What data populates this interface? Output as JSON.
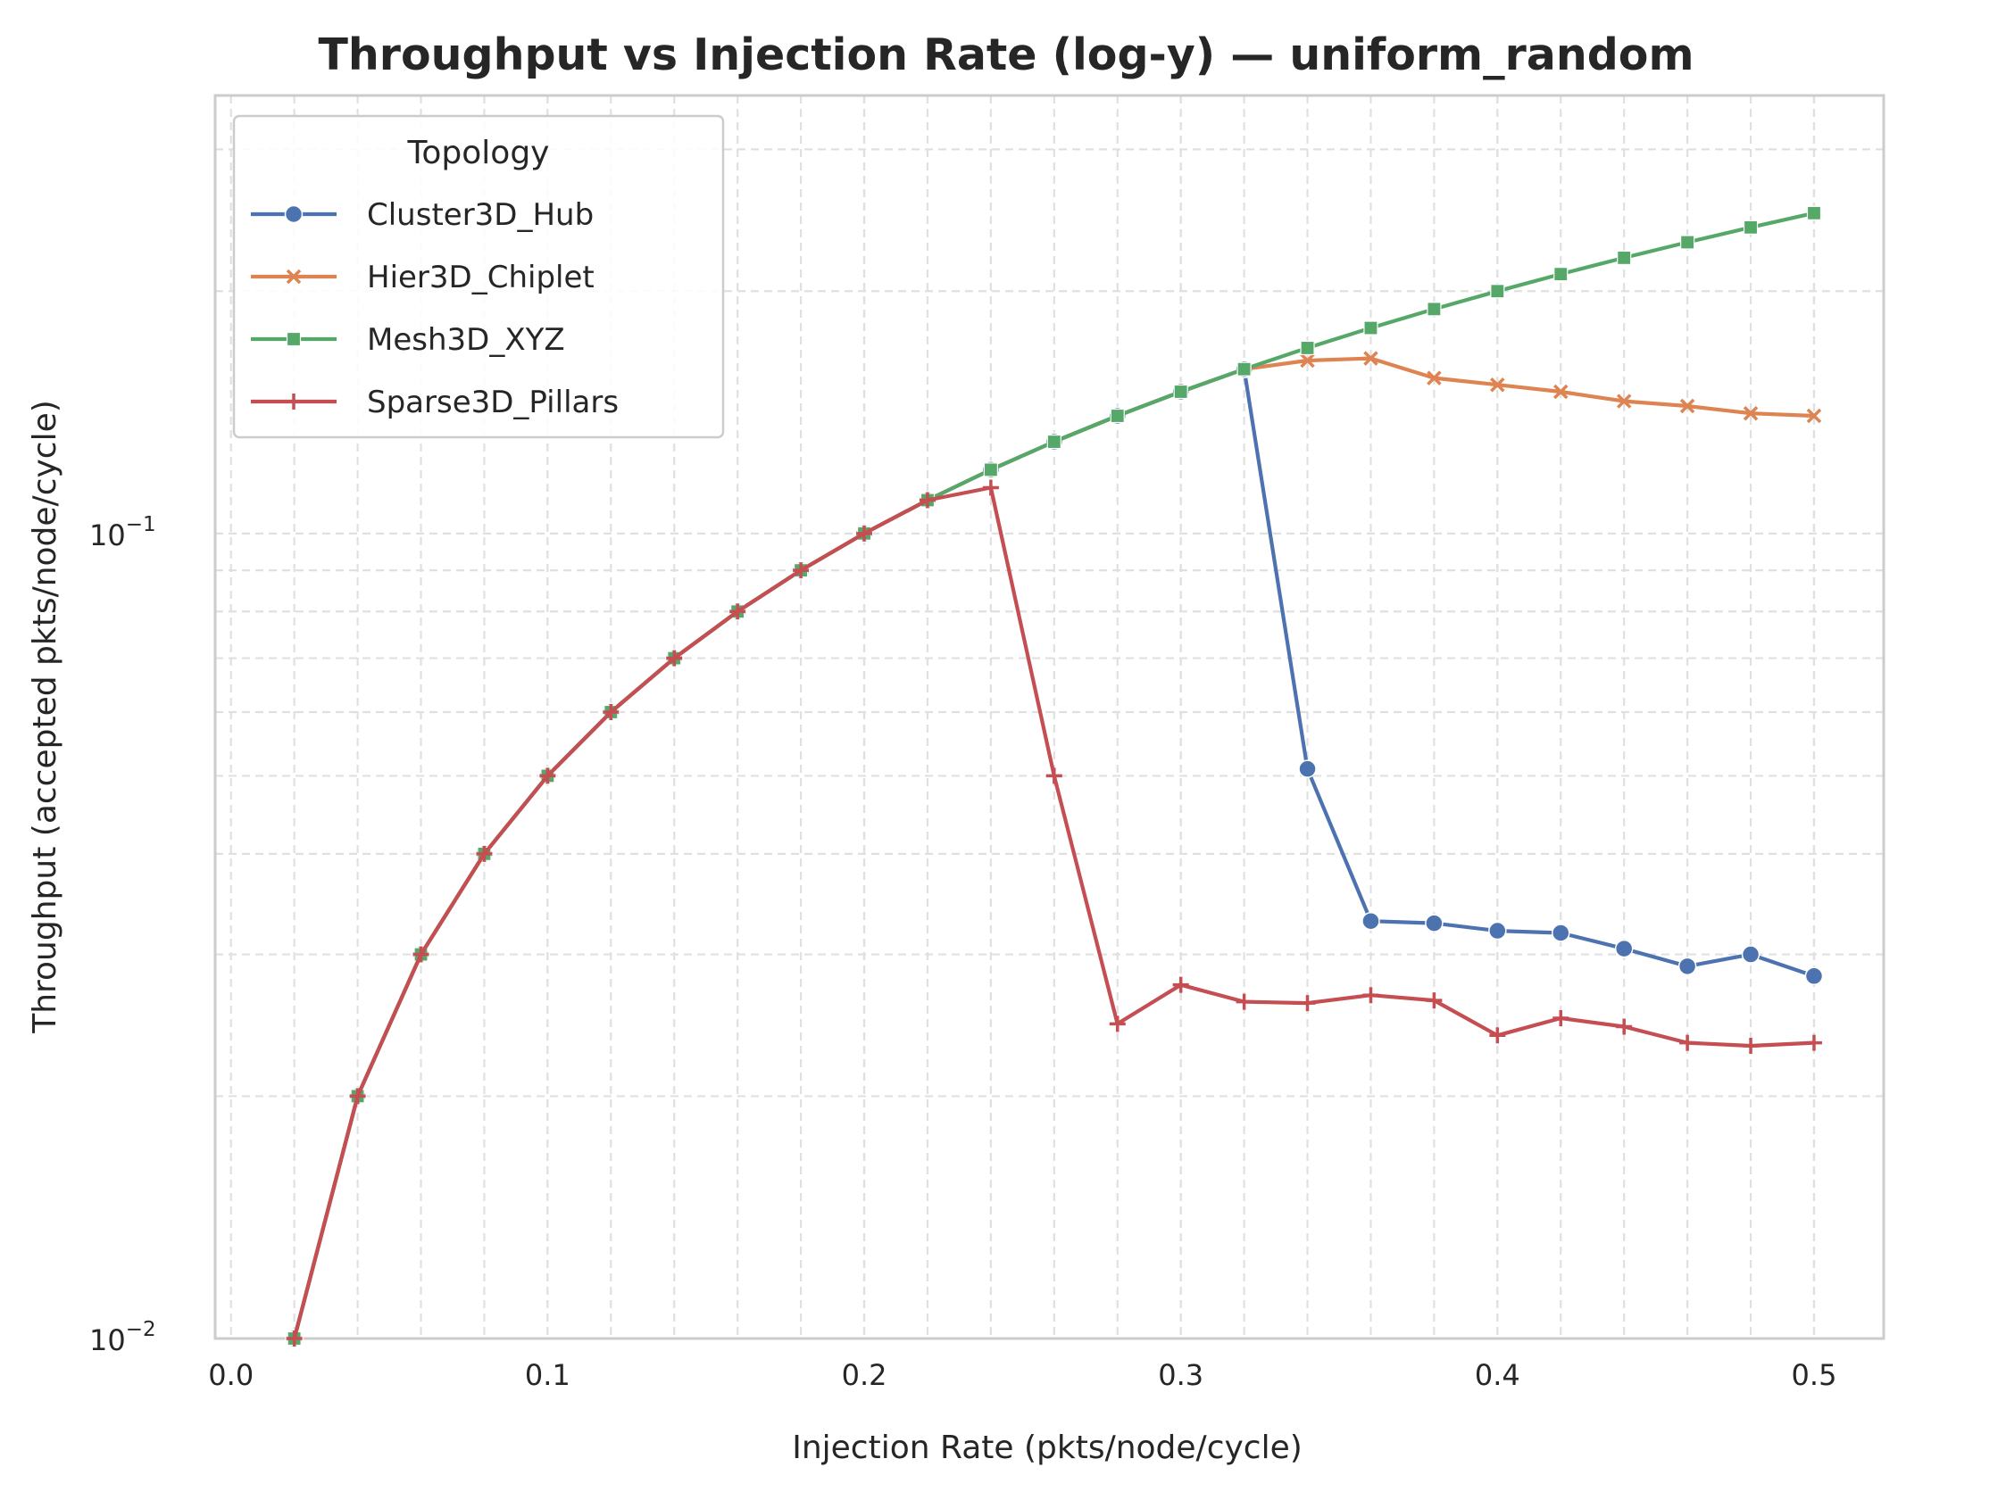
{
  "chart_data": {
    "type": "line",
    "title": "Throughput vs Injection Rate (log-y) — uniform_random",
    "xlabel": "Injection Rate (pkts/node/cycle)",
    "ylabel": "Throughput (accepted pkts/node/cycle)",
    "xlim": [
      -0.005,
      0.522
    ],
    "ylim": [
      0.01,
      0.35
    ],
    "yscale": "log",
    "grid": true,
    "xticks": [
      {
        "value": 0.0,
        "label": "0.0"
      },
      {
        "value": 0.1,
        "label": "0.1"
      },
      {
        "value": 0.2,
        "label": "0.2"
      },
      {
        "value": 0.3,
        "label": "0.3"
      },
      {
        "value": 0.4,
        "label": "0.4"
      },
      {
        "value": 0.5,
        "label": "0.5"
      }
    ],
    "yticks": [
      {
        "value": 0.01,
        "base": "10",
        "exp": "−2"
      },
      {
        "value": 0.1,
        "base": "10",
        "exp": "−1"
      }
    ],
    "legend": {
      "title": "Topology",
      "position": "top-left"
    },
    "series": [
      {
        "name": "Cluster3D_Hub",
        "color": "#4c72b0",
        "marker": "circle",
        "x": [
          0.02,
          0.04,
          0.06,
          0.08,
          0.1,
          0.12,
          0.14,
          0.16,
          0.18,
          0.2,
          0.22,
          0.24,
          0.26,
          0.28,
          0.3,
          0.32,
          0.34,
          0.36,
          0.38,
          0.4,
          0.42,
          0.44,
          0.46,
          0.48,
          0.5
        ],
        "y": [
          0.01,
          0.02,
          0.03,
          0.04,
          0.05,
          0.06,
          0.07,
          0.08,
          0.09,
          0.1,
          0.11,
          0.12,
          0.13,
          0.14,
          0.15,
          0.16,
          0.051,
          0.033,
          0.0328,
          0.0321,
          0.0319,
          0.0305,
          0.029,
          0.03,
          0.0282
        ]
      },
      {
        "name": "Hier3D_Chiplet",
        "color": "#dd8452",
        "marker": "x",
        "x": [
          0.02,
          0.04,
          0.06,
          0.08,
          0.1,
          0.12,
          0.14,
          0.16,
          0.18,
          0.2,
          0.22,
          0.24,
          0.26,
          0.28,
          0.3,
          0.32,
          0.34,
          0.36,
          0.38,
          0.4,
          0.42,
          0.44,
          0.46,
          0.48,
          0.5
        ],
        "y": [
          0.01,
          0.02,
          0.03,
          0.04,
          0.05,
          0.06,
          0.07,
          0.08,
          0.09,
          0.1,
          0.11,
          0.12,
          0.13,
          0.14,
          0.15,
          0.16,
          0.164,
          0.165,
          0.156,
          0.153,
          0.15,
          0.146,
          0.144,
          0.141,
          0.14
        ]
      },
      {
        "name": "Mesh3D_XYZ",
        "color": "#55a868",
        "marker": "square",
        "x": [
          0.02,
          0.04,
          0.06,
          0.08,
          0.1,
          0.12,
          0.14,
          0.16,
          0.18,
          0.2,
          0.22,
          0.24,
          0.26,
          0.28,
          0.3,
          0.32,
          0.34,
          0.36,
          0.38,
          0.4,
          0.42,
          0.44,
          0.46,
          0.48,
          0.5
        ],
        "y": [
          0.01,
          0.02,
          0.03,
          0.04,
          0.05,
          0.06,
          0.07,
          0.08,
          0.09,
          0.1,
          0.11,
          0.12,
          0.13,
          0.14,
          0.15,
          0.16,
          0.17,
          0.18,
          0.19,
          0.2,
          0.21,
          0.22,
          0.23,
          0.24,
          0.25
        ]
      },
      {
        "name": "Sparse3D_Pillars",
        "color": "#c44e52",
        "marker": "plus",
        "x": [
          0.02,
          0.04,
          0.06,
          0.08,
          0.1,
          0.12,
          0.14,
          0.16,
          0.18,
          0.2,
          0.22,
          0.24,
          0.26,
          0.28,
          0.3,
          0.32,
          0.34,
          0.36,
          0.38,
          0.4,
          0.42,
          0.44,
          0.46,
          0.48,
          0.5
        ],
        "y": [
          0.01,
          0.02,
          0.03,
          0.04,
          0.05,
          0.06,
          0.07,
          0.08,
          0.09,
          0.1,
          0.11,
          0.114,
          0.05,
          0.0246,
          0.0275,
          0.0262,
          0.0261,
          0.0267,
          0.0263,
          0.0238,
          0.025,
          0.0244,
          0.0233,
          0.0231,
          0.0233
        ]
      }
    ]
  }
}
